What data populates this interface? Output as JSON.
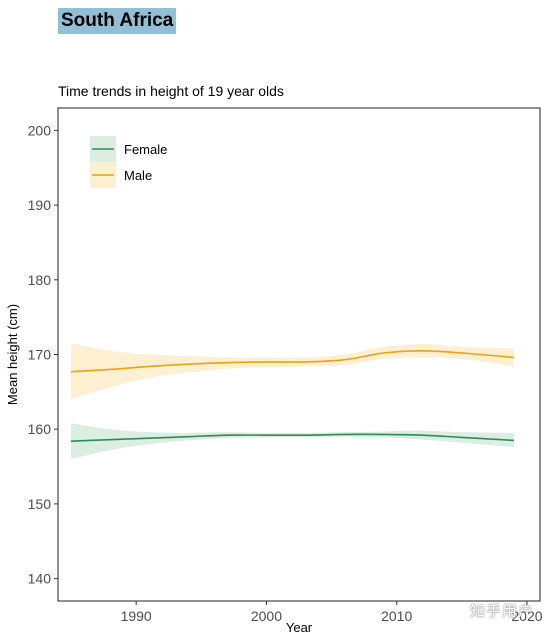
{
  "header": {
    "country": "South Africa",
    "subtitle": "Time trends in height of 19 year olds"
  },
  "watermark": "知乎用户",
  "chart_data": {
    "type": "line",
    "title": "Time trends in height of 19 year olds",
    "xlabel": "Year",
    "ylabel": "Mean height (cm)",
    "xlim": [
      1984,
      2021
    ],
    "ylim": [
      137,
      203
    ],
    "xticks": [
      1990,
      2000,
      2010,
      2020
    ],
    "yticks": [
      140,
      150,
      160,
      170,
      180,
      190,
      200
    ],
    "grid": false,
    "legend_position": "top-left",
    "x": [
      1985,
      1988,
      1991,
      1994,
      1997,
      2000,
      2003,
      2006,
      2009,
      2012,
      2015,
      2019
    ],
    "series": [
      {
        "name": "Female",
        "color": "#2e8b57",
        "band_color": "#dcede2",
        "values": [
          158.4,
          158.6,
          158.8,
          159.0,
          159.2,
          159.2,
          159.2,
          159.3,
          159.3,
          159.2,
          158.9,
          158.5
        ],
        "lower": [
          156.0,
          157.2,
          158.0,
          158.5,
          158.8,
          158.9,
          158.9,
          159.0,
          158.9,
          158.6,
          158.2,
          157.6
        ],
        "upper": [
          160.8,
          160.0,
          159.6,
          159.5,
          159.6,
          159.5,
          159.5,
          159.6,
          159.7,
          159.8,
          159.6,
          159.5
        ]
      },
      {
        "name": "Male",
        "color": "#e8a317",
        "band_color": "#fdefd2",
        "values": [
          167.7,
          168.0,
          168.4,
          168.7,
          168.9,
          169.0,
          169.0,
          169.3,
          170.2,
          170.5,
          170.2,
          169.6
        ],
        "lower": [
          164.0,
          165.6,
          166.9,
          167.6,
          168.1,
          168.3,
          168.4,
          168.6,
          169.4,
          169.6,
          169.4,
          168.4
        ],
        "upper": [
          171.5,
          170.5,
          170.0,
          169.8,
          169.6,
          169.6,
          169.6,
          170.0,
          171.0,
          171.4,
          171.0,
          170.8
        ]
      }
    ]
  }
}
